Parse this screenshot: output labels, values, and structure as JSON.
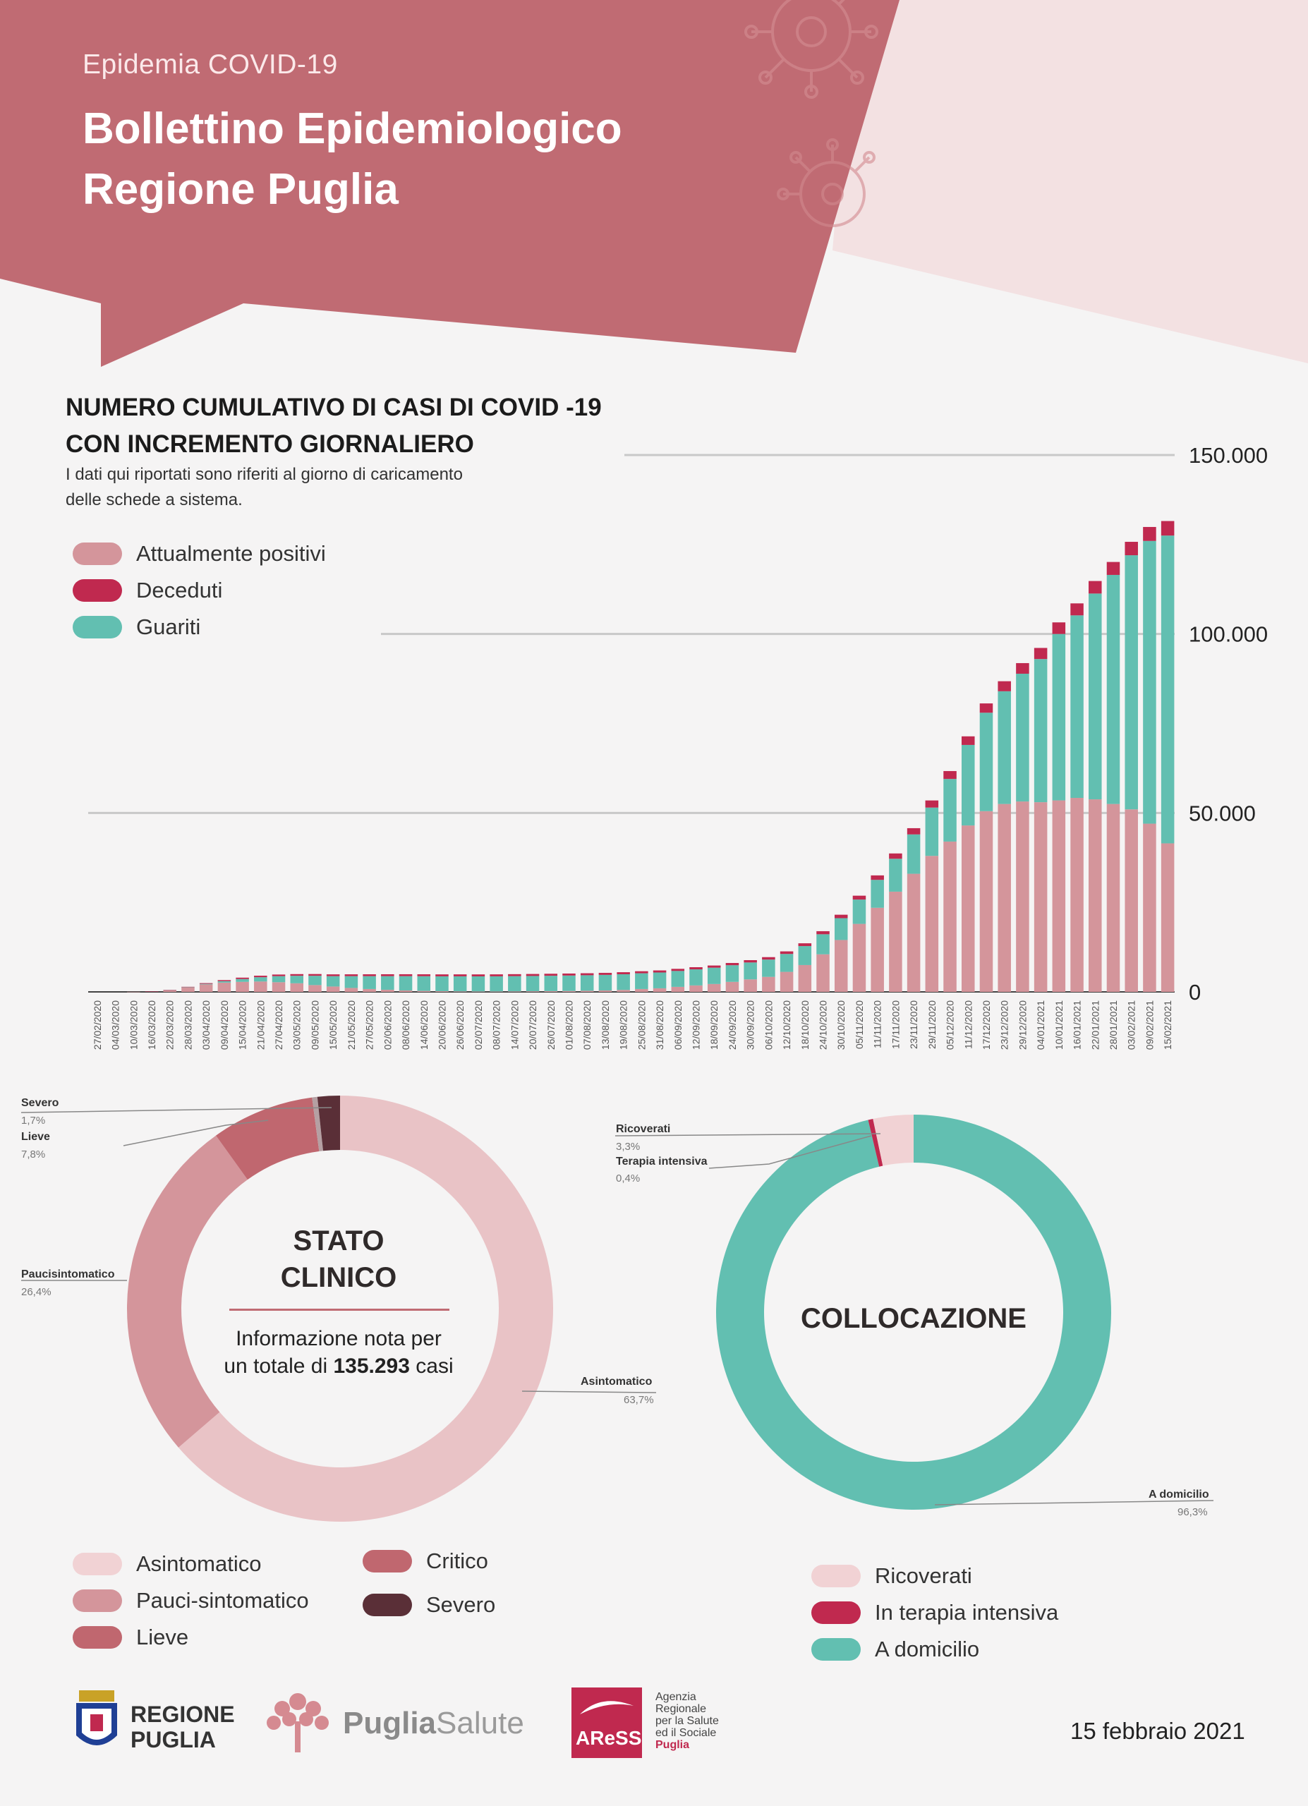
{
  "header": {
    "kicker": "Epidemia COVID-19",
    "title_line1": "Bollettino Epidemiologico",
    "title_line2": "Regione Puglia"
  },
  "colors": {
    "header_red": "#c06b73",
    "positivi": "#d4959b",
    "deceduti": "#c0294f",
    "guariti": "#62bfb1",
    "asintomatico": "#e9c3c6",
    "pauci": "#d4959b",
    "lieve": "#c0676f",
    "critico": "#c0676f",
    "severo": "#5a2f37",
    "ricoverati": "#f1d2d4",
    "terapia": "#c0294f",
    "domicilio": "#62bfb1"
  },
  "main_chart": {
    "title_line1": "NUMERO CUMULATIVO DI CASI DI COVID -19",
    "title_line2": "CON INCREMENTO GIORNALIERO",
    "note_line1": "I dati qui riportati sono riferiti al giorno di caricamento",
    "note_line2": "delle schede a sistema.",
    "legend": [
      {
        "label": "Attualmente positivi",
        "color": "#d4959b"
      },
      {
        "label": "Deceduti",
        "color": "#c0294f"
      },
      {
        "label": "Guariti",
        "color": "#62bfb1"
      }
    ],
    "y_ticks": [
      "150.000",
      "100.000",
      "50.000",
      "0"
    ]
  },
  "chart_data": [
    {
      "type": "bar",
      "stacked": true,
      "title": "NUMERO CUMULATIVO DI CASI DI COVID -19 CON INCREMENTO GIORNALIERO",
      "ylim": [
        0,
        150000
      ],
      "y_ticks": [
        0,
        50000,
        100000,
        150000
      ],
      "grid": true,
      "legend_position": "top-left",
      "categories": [
        "27/02/2020",
        "04/03/2020",
        "10/03/2020",
        "16/03/2020",
        "22/03/2020",
        "28/03/2020",
        "03/04/2020",
        "09/04/2020",
        "15/04/2020",
        "21/04/2020",
        "27/04/2020",
        "03/05/2020",
        "09/05/2020",
        "15/05/2020",
        "21/05/2020",
        "27/05/2020",
        "02/06/2020",
        "08/06/2020",
        "14/06/2020",
        "20/06/2020",
        "26/06/2020",
        "02/07/2020",
        "08/07/2020",
        "14/07/2020",
        "20/07/2020",
        "26/07/2020",
        "01/08/2020",
        "07/08/2020",
        "13/08/2020",
        "19/08/2020",
        "25/08/2020",
        "31/08/2020",
        "06/09/2020",
        "12/09/2020",
        "18/09/2020",
        "24/09/2020",
        "30/09/2020",
        "06/10/2020",
        "12/10/2020",
        "18/10/2020",
        "24/10/2020",
        "30/10/2020",
        "05/11/2020",
        "11/11/2020",
        "17/11/2020",
        "23/11/2020",
        "29/11/2020",
        "05/12/2020",
        "11/12/2020",
        "17/12/2020",
        "23/12/2020",
        "29/12/2020",
        "04/01/2021",
        "10/01/2021",
        "16/01/2021",
        "22/01/2021",
        "28/01/2021",
        "03/02/2021",
        "09/02/2021",
        "15/02/2021"
      ],
      "series": [
        {
          "name": "Attualmente positivi",
          "values": [
            0,
            0,
            30,
            100,
            500,
            1300,
            2100,
            2600,
            2800,
            2900,
            2700,
            2400,
            1900,
            1500,
            1100,
            800,
            600,
            400,
            280,
            200,
            150,
            120,
            120,
            150,
            180,
            220,
            260,
            320,
            400,
            550,
            800,
            1000,
            1400,
            1800,
            2200,
            2800,
            3500,
            4200,
            5600,
            7500,
            10500,
            14500,
            19000,
            23500,
            28000,
            33000,
            38000,
            42000,
            46500,
            50500,
            52500,
            53200,
            53000,
            53500,
            54200,
            53800,
            52500,
            51000,
            47000,
            41500
          ]
        },
        {
          "name": "Deceduti",
          "values": [
            0,
            0,
            0,
            3,
            20,
            80,
            200,
            300,
            380,
            420,
            450,
            470,
            490,
            500,
            510,
            520,
            530,
            535,
            540,
            545,
            548,
            550,
            552,
            555,
            556,
            558,
            560,
            562,
            565,
            570,
            575,
            580,
            590,
            600,
            610,
            630,
            650,
            680,
            720,
            780,
            860,
            960,
            1080,
            1250,
            1480,
            1740,
            1990,
            2200,
            2400,
            2600,
            2800,
            2960,
            3100,
            3240,
            3350,
            3500,
            3620,
            3750,
            3900,
            4060
          ]
        },
        {
          "name": "Guariti",
          "values": [
            0,
            0,
            0,
            0,
            10,
            40,
            150,
            400,
            800,
            1200,
            1700,
            2100,
            2600,
            2900,
            3300,
            3600,
            3800,
            4000,
            4100,
            4150,
            4200,
            4220,
            4230,
            4250,
            4270,
            4290,
            4310,
            4330,
            4350,
            4380,
            4400,
            4420,
            4450,
            4500,
            4560,
            4650,
            4720,
            4830,
            5000,
            5300,
            5600,
            6100,
            6800,
            7800,
            9200,
            11000,
            13500,
            17500,
            22500,
            27500,
            31500,
            35700,
            40000,
            46500,
            51000,
            57500,
            64000,
            71000,
            79000,
            86000
          ]
        }
      ]
    },
    {
      "type": "pie",
      "donut": true,
      "title": "STATO CLINICO",
      "categories": [
        "Asintomatico",
        "Paucisintomatico",
        "Lieve",
        "Critico",
        "Severo"
      ],
      "values": [
        63.7,
        26.4,
        7.8,
        0.4,
        1.7
      ],
      "unit": "%"
    },
    {
      "type": "pie",
      "donut": true,
      "title": "COLLOCAZIONE",
      "categories": [
        "Ricoverati",
        "Terapia intensiva",
        "A domicilio"
      ],
      "values": [
        3.3,
        0.4,
        96.3
      ],
      "unit": "%"
    }
  ],
  "stato_clinico": {
    "title_line1": "STATO",
    "title_line2": "CLINICO",
    "info_line1": "Informazione nota per",
    "info_prefix": "un totale di",
    "info_total": "135.293",
    "info_suffix": "casi",
    "callouts": {
      "severo_label": "Severo",
      "severo_pct": "1,7%",
      "lieve_label": "Lieve",
      "lieve_pct": "7,8%",
      "pauci_label": "Paucisintomatico",
      "pauci_pct": "26,4%",
      "asinto_label": "Asintomatico",
      "asinto_pct": "63,7%"
    },
    "legend": [
      {
        "label": "Asintomatico",
        "color": "#f1d2d4"
      },
      {
        "label": "Pauci-sintomatico",
        "color": "#d4959b"
      },
      {
        "label": "Lieve",
        "color": "#c0676f"
      },
      {
        "label": "Critico",
        "color": "#c0676f"
      },
      {
        "label": "Severo",
        "color": "#5a2f37"
      }
    ]
  },
  "collocazione": {
    "title": "COLLOCAZIONE",
    "callouts": {
      "ricoverati_label": "Ricoverati",
      "ricoverati_pct": "3,3%",
      "terapia_label": "Terapia intensiva",
      "terapia_pct": "0,4%",
      "domicilio_label": "A domicilio",
      "domicilio_pct": "96,3%"
    },
    "legend": [
      {
        "label": "Ricoverati",
        "color": "#f1d2d4"
      },
      {
        "label": "In terapia intensiva",
        "color": "#c0294f"
      },
      {
        "label": "A domicilio",
        "color": "#62bfb1"
      }
    ]
  },
  "footer": {
    "regione_line1": "REGIONE",
    "regione_line2": "PUGLIA",
    "puglia": "Puglia",
    "salute": "Salute",
    "aress_logo": "AReSS",
    "aress_line1": "Agenzia",
    "aress_line2": "Regionale",
    "aress_line3": "per la Salute",
    "aress_line4": "ed il Sociale",
    "aress_line5": "Puglia",
    "date": "15 febbraio 2021"
  }
}
